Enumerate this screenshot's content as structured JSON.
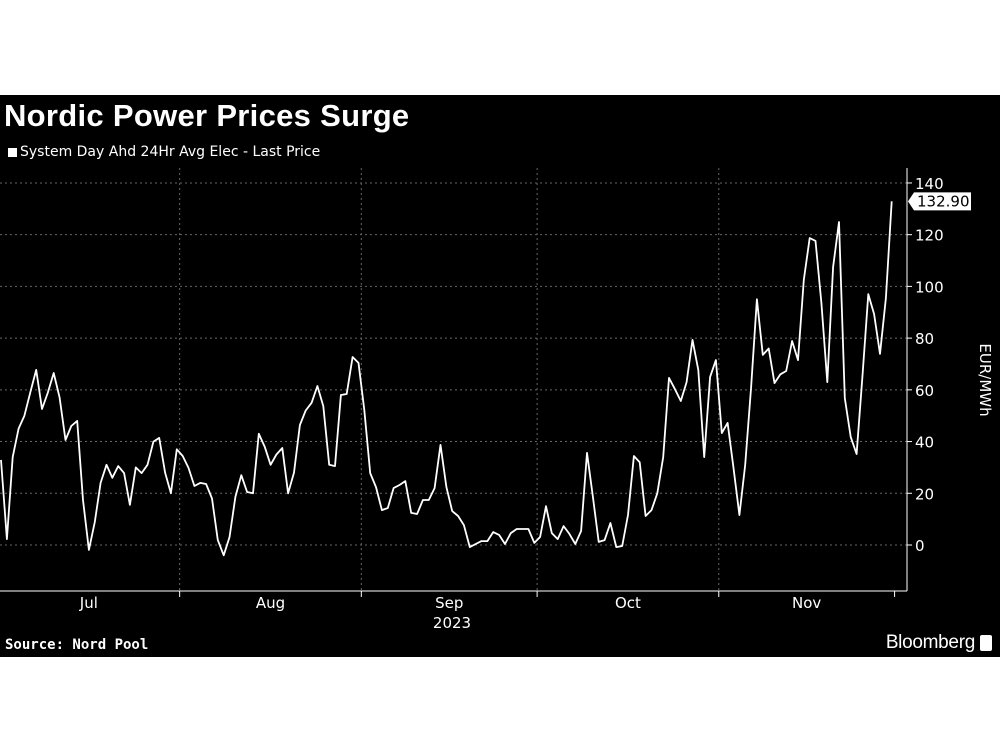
{
  "header": {
    "title": "Nordic Power Prices Surge"
  },
  "footer": {
    "source": "Source: Nord Pool",
    "brand": "Bloomberg"
  },
  "colors": {
    "background": "#000000",
    "line": "#ffffff",
    "grid": "#555555"
  },
  "chart_data": {
    "type": "line",
    "title": "Nordic Power Prices Surge",
    "ylabel": "EUR/MWh",
    "xlabel": "",
    "ylim": [
      -18,
      140
    ],
    "yticks": [
      0,
      20,
      40,
      60,
      80,
      100,
      120,
      140
    ],
    "xticks": [
      "Jul",
      "Aug",
      "Sep",
      "Oct",
      "Nov"
    ],
    "xyear": "2023",
    "grid": true,
    "legend_position": "top-left",
    "last_value_label": "132.90",
    "series": [
      {
        "name": "System Day Ahd 24Hr Avg Elec - Last Price",
        "dates": [
          "2023-07-01",
          "2023-07-02",
          "2023-07-03",
          "2023-07-04",
          "2023-07-05",
          "2023-07-06",
          "2023-07-07",
          "2023-07-08",
          "2023-07-09",
          "2023-07-10",
          "2023-07-11",
          "2023-07-12",
          "2023-07-13",
          "2023-07-14",
          "2023-07-15",
          "2023-07-16",
          "2023-07-17",
          "2023-07-18",
          "2023-07-19",
          "2023-07-20",
          "2023-07-21",
          "2023-07-22",
          "2023-07-23",
          "2023-07-24",
          "2023-07-25",
          "2023-07-26",
          "2023-07-27",
          "2023-07-28",
          "2023-07-29",
          "2023-07-30",
          "2023-07-31",
          "2023-08-01",
          "2023-08-02",
          "2023-08-03",
          "2023-08-04",
          "2023-08-05",
          "2023-08-06",
          "2023-08-07",
          "2023-08-08",
          "2023-08-09",
          "2023-08-10",
          "2023-08-11",
          "2023-08-12",
          "2023-08-13",
          "2023-08-14",
          "2023-08-15",
          "2023-08-16",
          "2023-08-17",
          "2023-08-18",
          "2023-08-19",
          "2023-08-20",
          "2023-08-21",
          "2023-08-22",
          "2023-08-23",
          "2023-08-24",
          "2023-08-25",
          "2023-08-26",
          "2023-08-27",
          "2023-08-28",
          "2023-08-29",
          "2023-08-30",
          "2023-08-31",
          "2023-09-01",
          "2023-09-02",
          "2023-09-03",
          "2023-09-04",
          "2023-09-05",
          "2023-09-06",
          "2023-09-07",
          "2023-09-08",
          "2023-09-09",
          "2023-09-10",
          "2023-09-11",
          "2023-09-12",
          "2023-09-13",
          "2023-09-14",
          "2023-09-15",
          "2023-09-16",
          "2023-09-17",
          "2023-09-18",
          "2023-09-19",
          "2023-09-20",
          "2023-09-21",
          "2023-09-22",
          "2023-09-23",
          "2023-09-24",
          "2023-09-25",
          "2023-09-26",
          "2023-09-27",
          "2023-09-28",
          "2023-09-29",
          "2023-09-30",
          "2023-10-01",
          "2023-10-02",
          "2023-10-03",
          "2023-10-04",
          "2023-10-05",
          "2023-10-06",
          "2023-10-07",
          "2023-10-08",
          "2023-10-09",
          "2023-10-10",
          "2023-10-11",
          "2023-10-12",
          "2023-10-13",
          "2023-10-14",
          "2023-10-15",
          "2023-10-16",
          "2023-10-17",
          "2023-10-18",
          "2023-10-19",
          "2023-10-20",
          "2023-10-21",
          "2023-10-22",
          "2023-10-23",
          "2023-10-24",
          "2023-10-25",
          "2023-10-26",
          "2023-10-27",
          "2023-10-28",
          "2023-10-29",
          "2023-10-30",
          "2023-10-31",
          "2023-11-01",
          "2023-11-02",
          "2023-11-03",
          "2023-11-04",
          "2023-11-05",
          "2023-11-06",
          "2023-11-07",
          "2023-11-08",
          "2023-11-09",
          "2023-11-10",
          "2023-11-11",
          "2023-11-12",
          "2023-11-13",
          "2023-11-14",
          "2023-11-15",
          "2023-11-16",
          "2023-11-17",
          "2023-11-18",
          "2023-11-19",
          "2023-11-20",
          "2023-11-21",
          "2023-11-22",
          "2023-11-23",
          "2023-11-24",
          "2023-11-25",
          "2023-11-26",
          "2023-11-27",
          "2023-11-28",
          "2023-11-29",
          "2023-11-30"
        ],
        "values": [
          32.9,
          2.3,
          34,
          45,
          50,
          59,
          67.7,
          52.6,
          59,
          66.5,
          57,
          40.6,
          46,
          48,
          17.4,
          -1.9,
          8.9,
          24,
          31,
          26,
          30.5,
          27.8,
          15.5,
          30,
          27.8,
          31,
          40,
          41.4,
          28,
          20,
          37,
          34.4,
          29.8,
          22.8,
          24,
          23.6,
          18,
          1.9,
          -4,
          3,
          18.6,
          27,
          20.5,
          20,
          43,
          38,
          31,
          35,
          37.5,
          20,
          28,
          46.4,
          52,
          55,
          61.5,
          53.7,
          31,
          30.5,
          58,
          58.4,
          72.7,
          70.4,
          52.2,
          27.8,
          22.4,
          13.5,
          14.3,
          22,
          23.2,
          24.7,
          12.4,
          12,
          17.4,
          17.4,
          22,
          38.7,
          22.4,
          13.1,
          11.2,
          7.7,
          -0.8,
          0.4,
          1.5,
          1.5,
          5,
          3.9,
          0.4,
          4.6,
          6.2,
          6.2,
          6.2,
          0.8,
          3.1,
          15,
          4.6,
          2.3,
          7.3,
          4.3,
          0.4,
          5.4,
          35.6,
          18.6,
          1.2,
          1.9,
          8.5,
          -0.8,
          -0.4,
          11.6,
          34.4,
          32,
          11.2,
          13.5,
          20,
          34,
          64.6,
          60.3,
          55.7,
          63,
          79.3,
          67.7,
          34,
          65,
          71.5,
          43.3,
          47.2,
          29.8,
          11.6,
          31,
          61,
          95,
          73.5,
          76,
          62.6,
          66,
          67.3,
          78.9,
          71.5,
          102.5,
          118.7,
          117.6,
          93.6,
          63,
          107.5,
          124.9,
          56.8,
          41.8,
          35.2,
          65,
          97,
          89.3,
          73.9,
          95.5,
          132.9
        ]
      }
    ]
  }
}
